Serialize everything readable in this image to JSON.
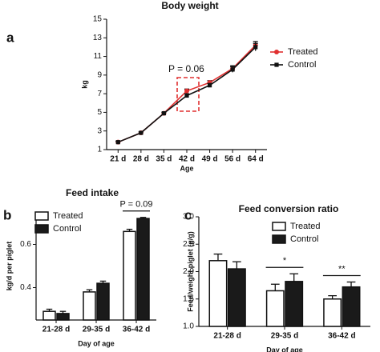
{
  "chart_data": [
    {
      "type": "line",
      "panel_label": "a",
      "title": "Body weight",
      "x_label": "Age",
      "y_label": "kg",
      "categories": [
        "21 d",
        "28 d",
        "35 d",
        "42 d",
        "49 d",
        "56 d",
        "64 d"
      ],
      "series": [
        {
          "name": "Treated",
          "color": "#e03030",
          "values": [
            1.8,
            2.8,
            4.9,
            7.3,
            8.2,
            9.7,
            12.2
          ],
          "errors": [
            0.1,
            0.1,
            0.1,
            0.2,
            0.2,
            0.3,
            0.4
          ]
        },
        {
          "name": "Control",
          "color": "#111111",
          "values": [
            1.8,
            2.8,
            4.9,
            6.8,
            7.9,
            9.6,
            12.0
          ],
          "errors": [
            0.1,
            0.1,
            0.1,
            0.2,
            0.2,
            0.3,
            0.4
          ]
        }
      ],
      "ylim": [
        1,
        15
      ],
      "yticks": [
        1,
        3,
        5,
        7,
        9,
        11,
        13,
        15
      ],
      "legend": "right",
      "annotation": "P = 0.06"
    },
    {
      "type": "bar",
      "panel_label": "b",
      "title": "Feed intake",
      "x_label": "Day of age",
      "y_label": "kg/d per piglet",
      "categories": [
        "21-28 d",
        "29-35 d",
        "36-42 d"
      ],
      "series": [
        {
          "name": "Treated",
          "color": "#ffffff",
          "values": [
            0.29,
            0.38,
            0.66
          ],
          "errors": [
            0.01,
            0.01,
            0.01
          ]
        },
        {
          "name": "Control",
          "color": "#1a1a1a",
          "values": [
            0.28,
            0.42,
            0.72
          ],
          "errors": [
            0.01,
            0.01,
            0.005
          ]
        }
      ],
      "ylim": [
        0.25,
        0.75
      ],
      "yticks": [
        0.4,
        0.6
      ],
      "legend": "upper left",
      "annotations": [
        null,
        null,
        "P = 0.09"
      ]
    },
    {
      "type": "bar",
      "panel_label": "c",
      "title": "Feed conversion ratio",
      "x_label": "Day of age",
      "y_label": "Feed/weight piglet (g/g)",
      "categories": [
        "21-28 d",
        "29-35 d",
        "36-42 d"
      ],
      "series": [
        {
          "name": "Treated",
          "color": "#ffffff",
          "values": [
            2.2,
            1.65,
            1.5
          ],
          "errors": [
            0.12,
            0.12,
            0.06
          ]
        },
        {
          "name": "Control",
          "color": "#1a1a1a",
          "values": [
            2.05,
            1.82,
            1.72
          ],
          "errors": [
            0.13,
            0.14,
            0.09
          ]
        }
      ],
      "ylim": [
        1.0,
        3.0
      ],
      "yticks": [
        {
          "value": 1.0,
          "label": "1.0"
        },
        1.5,
        {
          "value": 2.0,
          "label": "2.0"
        },
        2.5,
        {
          "value": 3.0,
          "label": "3.0"
        }
      ],
      "legend": "upper center",
      "annotations": [
        null,
        "*",
        "**"
      ]
    }
  ]
}
